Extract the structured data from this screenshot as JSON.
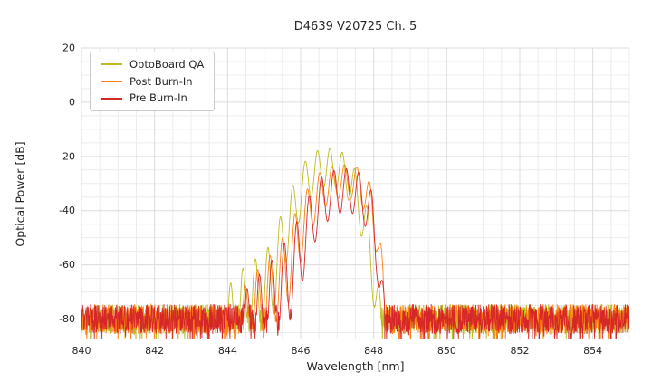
{
  "chart_data": {
    "type": "line",
    "title": "D4639 V20725 Ch. 5",
    "xlabel": "Wavelength [nm]",
    "ylabel": "Optical Power [dB]",
    "xlim": [
      840,
      855
    ],
    "ylim": [
      -87.5,
      20
    ],
    "xticks": [
      840,
      842,
      844,
      846,
      848,
      850,
      852,
      854
    ],
    "yticks": [
      20,
      0,
      -20,
      -40,
      -60,
      -80
    ],
    "x_minor_step": 0.5,
    "y_minor_step": 5,
    "grid": true,
    "legend_position": "upper-left",
    "noise_floor": {
      "mean": -80,
      "spread": 11,
      "spike_chance": 0.05,
      "spike_extra": 6
    },
    "series": [
      {
        "name": "OptoBoard QA",
        "color": "#bcbd22",
        "envelope": [
          [
            843.85,
            -72
          ],
          [
            844.2,
            -64
          ],
          [
            844.6,
            -59
          ],
          [
            845.0,
            -56
          ],
          [
            845.25,
            -50
          ],
          [
            845.55,
            -38
          ],
          [
            845.9,
            -27
          ],
          [
            846.2,
            -20
          ],
          [
            846.5,
            -17.5
          ],
          [
            846.8,
            -17
          ],
          [
            847.1,
            -18
          ],
          [
            847.35,
            -21
          ],
          [
            847.6,
            -28
          ],
          [
            847.85,
            -40
          ],
          [
            848.0,
            -52
          ],
          [
            848.1,
            -62
          ],
          [
            848.2,
            -75
          ]
        ],
        "ripple": {
          "center": 846.8,
          "period": 0.34,
          "depth_center": 14,
          "depth_edge": 30,
          "halfwidth": 1.6
        }
      },
      {
        "name": "Post Burn-In",
        "color": "#ff7f0e",
        "envelope": [
          [
            844.35,
            -70
          ],
          [
            844.8,
            -62
          ],
          [
            845.2,
            -56
          ],
          [
            845.6,
            -48
          ],
          [
            845.95,
            -38
          ],
          [
            846.3,
            -29
          ],
          [
            846.6,
            -25
          ],
          [
            846.9,
            -23.5
          ],
          [
            847.2,
            -23
          ],
          [
            847.5,
            -23.5
          ],
          [
            847.75,
            -26
          ],
          [
            847.95,
            -31
          ],
          [
            848.1,
            -40
          ],
          [
            848.2,
            -52
          ],
          [
            848.3,
            -68
          ],
          [
            848.38,
            -80
          ]
        ],
        "ripple": {
          "center": 847.2,
          "period": 0.34,
          "depth_center": 12,
          "depth_edge": 28,
          "halfwidth": 1.5
        }
      },
      {
        "name": "Pre Burn-In",
        "color": "#d62728",
        "envelope": [
          [
            844.45,
            -70
          ],
          [
            844.9,
            -63
          ],
          [
            845.3,
            -57
          ],
          [
            845.7,
            -49
          ],
          [
            846.05,
            -40
          ],
          [
            846.35,
            -31
          ],
          [
            846.65,
            -26.5
          ],
          [
            846.95,
            -25
          ],
          [
            847.25,
            -24.5
          ],
          [
            847.5,
            -25
          ],
          [
            847.75,
            -27.5
          ],
          [
            847.95,
            -33
          ],
          [
            848.1,
            -44
          ],
          [
            848.2,
            -58
          ],
          [
            848.3,
            -74
          ]
        ],
        "ripple": {
          "center": 847.25,
          "period": 0.34,
          "depth_center": 16,
          "depth_edge": 32,
          "halfwidth": 1.5
        }
      }
    ]
  }
}
